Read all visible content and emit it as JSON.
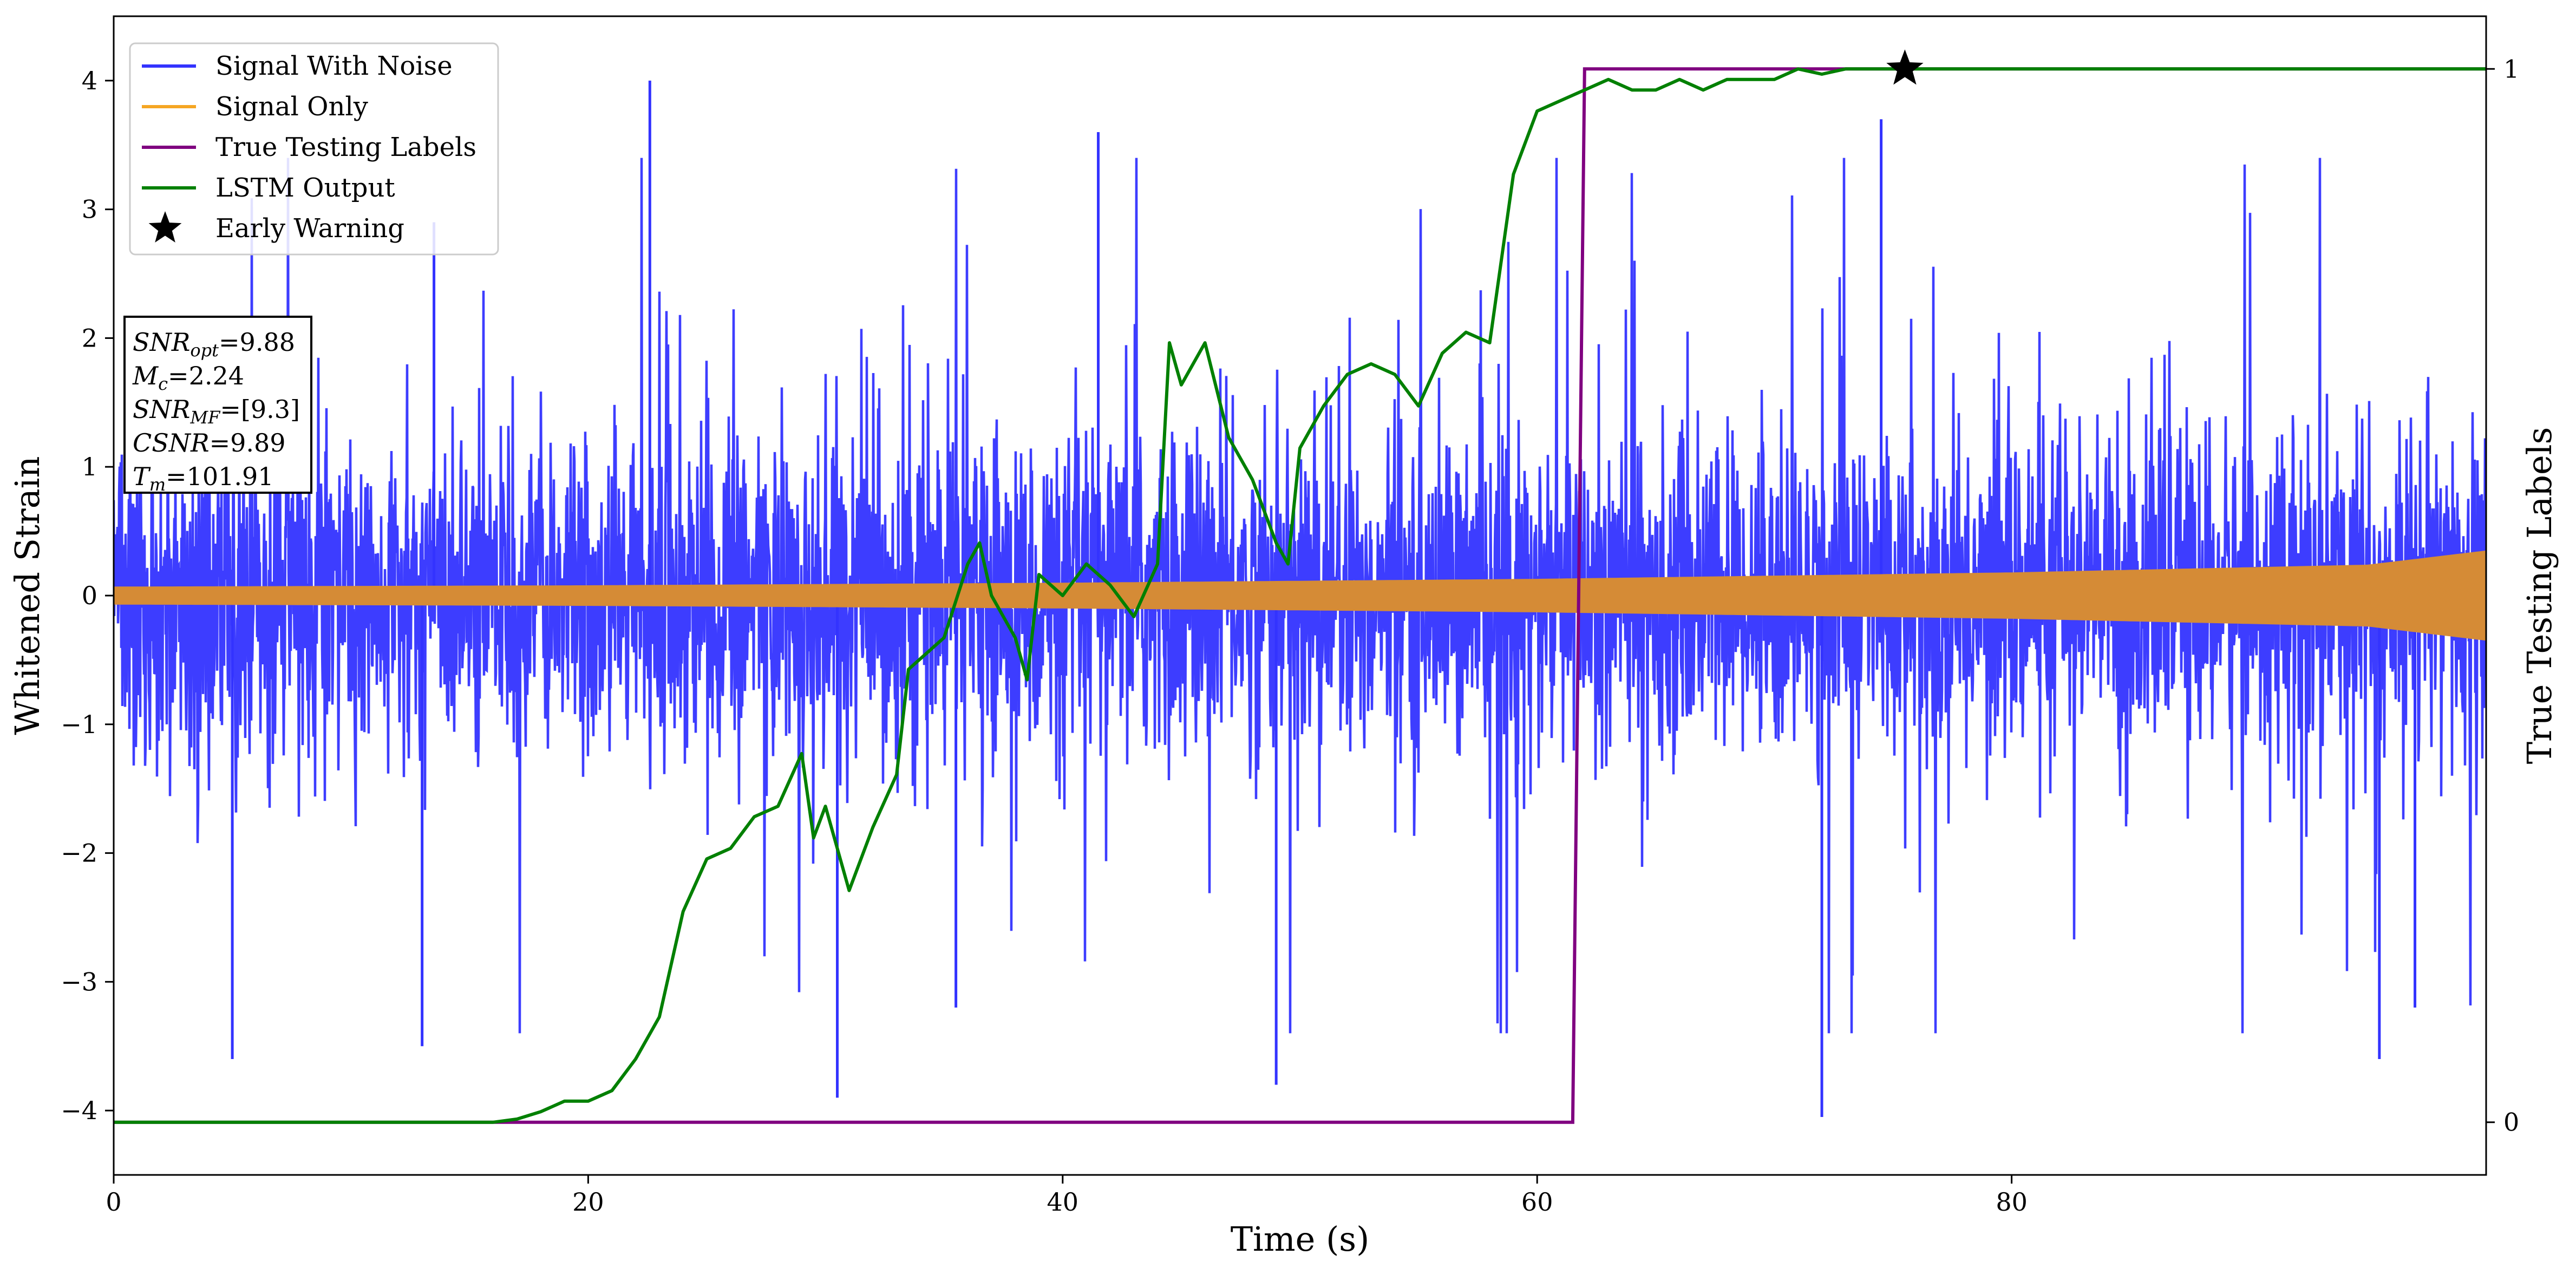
{
  "chart_data": {
    "type": "line",
    "xlabel": "Time (s)",
    "ylabel": "Whitened Strain",
    "y2label": "True Testing Labels",
    "xlim": [
      0,
      100
    ],
    "ylim": [
      -4.5,
      4.5
    ],
    "y2lim": [
      -0.05,
      1.05
    ],
    "xticks": [
      0,
      20,
      40,
      60,
      80
    ],
    "yticks": [
      -4,
      -3,
      -2,
      -1,
      0,
      1,
      2,
      3,
      4
    ],
    "y2ticks": [
      0,
      1
    ],
    "grid": false,
    "legend_position": "top-left",
    "series": [
      {
        "name": "Signal With Noise",
        "axis": "left",
        "color": "#3333ff",
        "style": "dense noisy oscillation",
        "core_band": [
          -1.0,
          1.0
        ],
        "spikes": [
          {
            "x": 5,
            "y": -3.6
          },
          {
            "x": 13,
            "y": -3.5
          },
          {
            "x": 13.5,
            "y": 2.9
          },
          {
            "x": 22.6,
            "y": 4.0
          },
          {
            "x": 30.5,
            "y": -3.9
          },
          {
            "x": 35.5,
            "y": -3.2
          },
          {
            "x": 41.5,
            "y": 3.6
          },
          {
            "x": 49,
            "y": -3.8
          },
          {
            "x": 72,
            "y": -4.05
          },
          {
            "x": 74.5,
            "y": 3.7
          },
          {
            "x": 95.5,
            "y": -3.6
          },
          {
            "x": 97,
            "y": -3.2
          }
        ]
      },
      {
        "name": "Signal Only",
        "axis": "left",
        "color": "#f5a623",
        "style": "chirp envelope",
        "envelope_x": [
          0,
          20,
          40,
          60,
          80,
          95,
          100
        ],
        "envelope_amplitude": [
          0.07,
          0.08,
          0.1,
          0.13,
          0.18,
          0.24,
          0.35
        ]
      },
      {
        "name": "True Testing Labels",
        "axis": "right",
        "color": "#800080",
        "x": [
          0,
          61.5,
          62,
          100
        ],
        "y": [
          0,
          0,
          1,
          1
        ]
      },
      {
        "name": "LSTM Output",
        "axis": "right",
        "color": "#008000",
        "x": [
          0,
          16,
          17,
          18,
          19,
          20,
          21,
          22,
          23,
          23.5,
          24,
          25,
          26,
          27,
          28,
          29,
          29.5,
          30,
          31,
          32,
          33,
          33.5,
          34,
          35,
          36,
          36.5,
          37,
          38,
          38.5,
          39,
          40,
          41,
          42,
          43,
          44,
          44.5,
          45,
          46,
          47,
          48,
          49,
          49.5,
          50,
          51,
          52,
          53,
          54,
          55,
          56,
          57,
          58,
          59,
          60,
          61,
          62,
          63,
          64,
          65,
          66,
          67,
          68,
          69,
          70,
          71,
          72,
          73,
          74,
          75,
          76,
          80,
          100
        ],
        "y": [
          0,
          0,
          0.003,
          0.01,
          0.02,
          0.02,
          0.03,
          0.06,
          0.1,
          0.15,
          0.2,
          0.25,
          0.26,
          0.29,
          0.3,
          0.35,
          0.27,
          0.3,
          0.22,
          0.28,
          0.33,
          0.43,
          0.44,
          0.46,
          0.53,
          0.55,
          0.5,
          0.46,
          0.42,
          0.52,
          0.5,
          0.53,
          0.51,
          0.48,
          0.53,
          0.74,
          0.7,
          0.74,
          0.65,
          0.61,
          0.55,
          0.53,
          0.64,
          0.68,
          0.71,
          0.72,
          0.71,
          0.68,
          0.73,
          0.75,
          0.74,
          0.9,
          0.96,
          0.97,
          0.98,
          0.99,
          0.98,
          0.98,
          0.99,
          0.98,
          0.99,
          0.99,
          0.99,
          1.0,
          0.995,
          1.0,
          1.0,
          1.0,
          1.0,
          1.0,
          1.0
        ]
      },
      {
        "name": "Early Warning",
        "axis": "right",
        "color": "#000000",
        "marker": "star",
        "x": [
          75.5
        ],
        "y": [
          1.0
        ]
      }
    ],
    "annotation": {
      "lines": [
        {
          "name": "SNR",
          "sub": "opt",
          "value": "=9.88"
        },
        {
          "name": "M",
          "sub": "c",
          "value": "=2.24"
        },
        {
          "name": "SNR",
          "sub": "MF",
          "value": "=[9.3]"
        },
        {
          "name": "CSNR",
          "sub": "",
          "value": "=9.89"
        },
        {
          "name": "T",
          "sub": "m",
          "value": "=101.91"
        }
      ]
    }
  }
}
